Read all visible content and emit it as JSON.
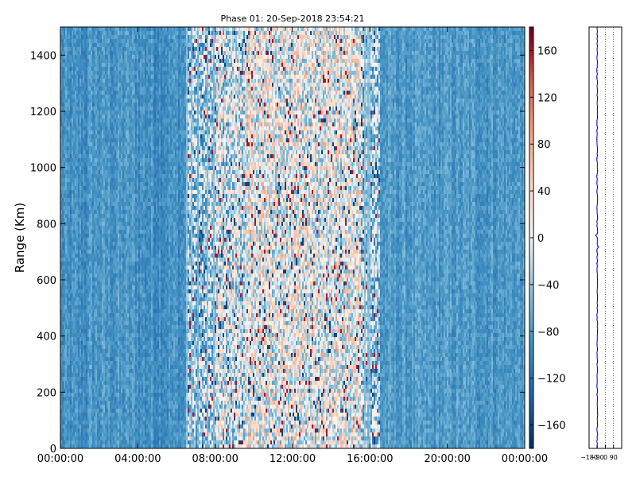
{
  "chart_data": [
    {
      "type": "heatmap",
      "title": "Phase 01: 20-Sep-2018 23:54:21",
      "xlabel": "",
      "ylabel": "Range (Km)",
      "x_tick_labels": [
        "00:00:00",
        "04:00:00",
        "08:00:00",
        "12:00:00",
        "16:00:00",
        "20:00:00",
        "00:00:00"
      ],
      "x_range_hours": [
        0,
        24
      ],
      "y_ticks": [
        0,
        200,
        400,
        600,
        800,
        1000,
        1200,
        1400
      ],
      "y_tick_labels": [
        "0",
        "200",
        "400",
        "600",
        "800",
        "1000",
        "1200",
        "1400"
      ],
      "ylim": [
        0,
        1500
      ],
      "colorbar": {
        "range": [
          -180,
          180
        ],
        "ticks": [
          -160,
          -120,
          -80,
          -40,
          0,
          40,
          80,
          120,
          160
        ],
        "tick_labels": [
          "−160",
          "−120",
          "−80",
          "−40",
          "0",
          "40",
          "80",
          "120",
          "160"
        ],
        "colormap": "RdBu_r",
        "low_color": "#053061",
        "mid_color": "#f7f7f7",
        "high_color": "#67001f"
      },
      "profile": [
        {
          "t_start": 0,
          "t_end": 1.5,
          "phase": -95
        },
        {
          "t_start": 1.5,
          "t_end": 4.0,
          "phase": -88
        },
        {
          "t_start": 4.0,
          "t_end": 6.5,
          "phase": -92
        },
        {
          "t_start": 6.5,
          "t_end": 8.0,
          "phase": -45
        },
        {
          "t_start": 8.0,
          "t_end": 9.5,
          "phase": -15
        },
        {
          "t_start": 9.5,
          "t_end": 15.5,
          "phase": 5
        },
        {
          "t_start": 15.5,
          "t_end": 16.5,
          "phase": -40
        },
        {
          "t_start": 16.5,
          "t_end": 24,
          "phase": -85
        }
      ]
    },
    {
      "type": "line",
      "title": "",
      "xlabel": "",
      "ylabel": "",
      "x_tick_labels": [
        "−180",
        "−90",
        "0",
        "90"
      ],
      "x_ticks": [
        -180,
        -90,
        0,
        90
      ],
      "xlim": [
        -180,
        180
      ],
      "ylim": [
        0,
        1500
      ],
      "grid": true,
      "line_color": "#0000cc",
      "mean_phase": -90
    }
  ]
}
